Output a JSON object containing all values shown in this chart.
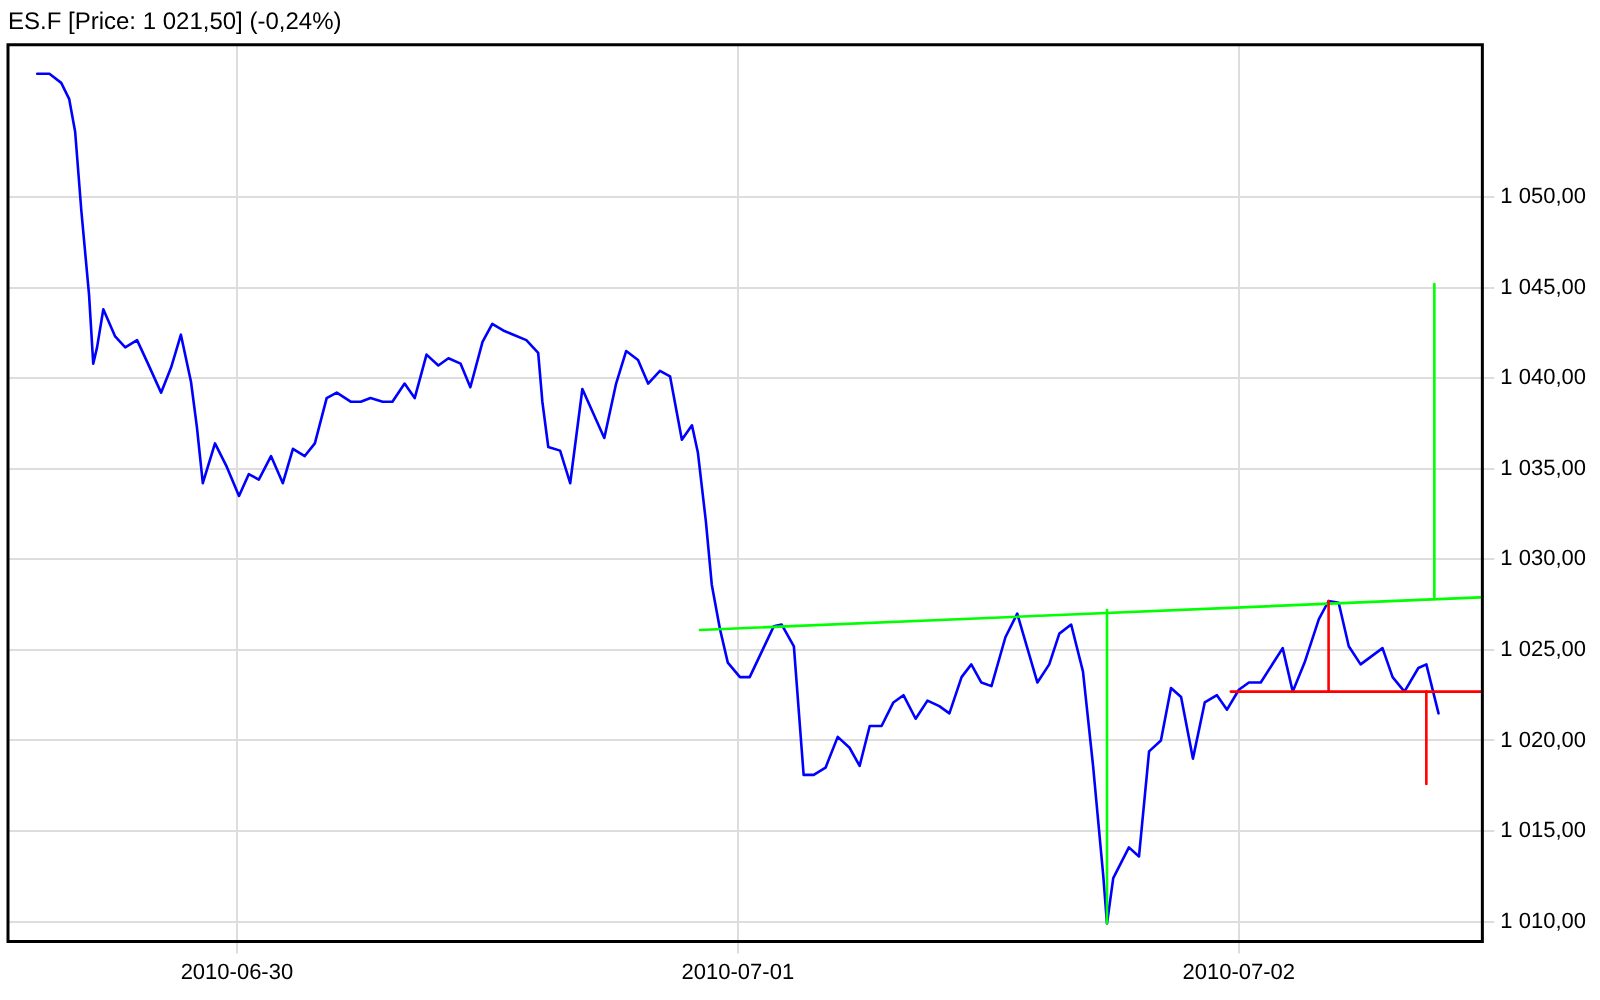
{
  "chart_data": {
    "type": "line",
    "title": "ES.F [Price: 1 021,50] (-0,24%)",
    "xlim": [
      "2010-06-29T13:02",
      "2010-07-02T11:40"
    ],
    "xticks": [
      "2010-06-30",
      "2010-07-01",
      "2010-07-02"
    ],
    "ylim": [
      1008.9,
      1058.4
    ],
    "yticks": [
      {
        "value": 1010,
        "label": "1 010,00"
      },
      {
        "value": 1015,
        "label": "1 015,00"
      },
      {
        "value": 1020,
        "label": "1 020,00"
      },
      {
        "value": 1025,
        "label": "1 025,00"
      },
      {
        "value": 1030,
        "label": "1 030,00"
      },
      {
        "value": 1035,
        "label": "1 035,00"
      },
      {
        "value": 1040,
        "label": "1 040,00"
      },
      {
        "value": 1045,
        "label": "1 045,00"
      },
      {
        "value": 1050,
        "label": "1 050,00"
      }
    ],
    "grid": true,
    "legend": false,
    "marker": "none",
    "line_style": "solid",
    "series": [
      {
        "color": "#0000ff",
        "x": [
          "2010-06-29T14:26",
          "2010-06-29T15:01",
          "2010-06-29T15:35",
          "2010-06-29T15:58",
          "2010-06-29T16:15",
          "2010-06-29T16:33",
          "2010-06-29T16:55",
          "2010-06-29T17:07",
          "2010-06-29T17:18",
          "2010-06-29T17:36",
          "2010-06-29T18:10",
          "2010-06-29T18:39",
          "2010-06-29T19:13",
          "2010-06-29T19:42",
          "2010-06-29T20:22",
          "2010-06-29T20:51",
          "2010-06-29T21:19",
          "2010-06-29T21:48",
          "2010-06-29T22:05",
          "2010-06-29T22:22",
          "2010-06-29T22:57",
          "2010-06-29T23:31",
          "2010-06-30T00:06",
          "2010-06-30T00:34",
          "2010-06-30T01:03",
          "2010-06-30T01:38",
          "2010-06-30T02:12",
          "2010-06-30T02:41",
          "2010-06-30T03:15",
          "2010-06-30T03:44",
          "2010-06-30T04:18",
          "2010-06-30T04:47",
          "2010-06-30T05:27",
          "2010-06-30T05:56",
          "2010-06-30T06:24",
          "2010-06-30T06:59",
          "2010-06-30T07:27",
          "2010-06-30T08:02",
          "2010-06-30T08:31",
          "2010-06-30T09:05",
          "2010-06-30T09:39",
          "2010-06-30T10:08",
          "2010-06-30T10:43",
          "2010-06-30T11:11",
          "2010-06-30T11:46",
          "2010-06-30T12:14",
          "2010-06-30T12:49",
          "2010-06-30T13:52",
          "2010-06-30T14:26",
          "2010-06-30T14:38",
          "2010-06-30T14:55",
          "2010-06-30T15:29",
          "2010-06-30T15:58",
          "2010-06-30T16:33",
          "2010-06-30T17:36",
          "2010-06-30T18:10",
          "2010-06-30T18:39",
          "2010-06-30T19:13",
          "2010-06-30T19:42",
          "2010-06-30T20:16",
          "2010-06-30T20:45",
          "2010-06-30T21:19",
          "2010-06-30T21:48",
          "2010-06-30T22:05",
          "2010-06-30T22:28",
          "2010-06-30T22:45",
          "2010-06-30T23:08",
          "2010-06-30T23:31",
          "2010-07-01T00:06",
          "2010-07-01T00:34",
          "2010-07-01T01:43",
          "2010-07-01T02:06",
          "2010-07-01T02:41",
          "2010-07-01T03:09",
          "2010-07-01T03:38",
          "2010-07-01T04:12",
          "2010-07-01T04:47",
          "2010-07-01T05:21",
          "2010-07-01T05:50",
          "2010-07-01T06:19",
          "2010-07-01T06:53",
          "2010-07-01T07:27",
          "2010-07-01T07:56",
          "2010-07-01T08:31",
          "2010-07-01T09:05",
          "2010-07-01T09:39",
          "2010-07-01T10:08",
          "2010-07-01T10:43",
          "2010-07-01T11:11",
          "2010-07-01T11:40",
          "2010-07-01T12:09",
          "2010-07-01T12:49",
          "2010-07-01T13:23",
          "2010-07-01T13:52",
          "2010-07-01T14:21",
          "2010-07-01T14:55",
          "2010-07-01T15:24",
          "2010-07-01T15:58",
          "2010-07-01T16:32",
          "2010-07-01T17:01",
          "2010-07-01T17:30",
          "2010-07-01T17:41",
          "2010-07-01T17:59",
          "2010-07-01T18:44",
          "2010-07-01T19:13",
          "2010-07-01T19:42",
          "2010-07-01T20:16",
          "2010-07-01T20:45",
          "2010-07-01T21:14",
          "2010-07-01T21:48",
          "2010-07-01T22:22",
          "2010-07-01T22:57",
          "2010-07-01T23:26",
          "2010-07-02T00:00",
          "2010-07-02T00:29",
          "2010-07-02T01:03",
          "2010-07-02T02:06",
          "2010-07-02T02:35",
          "2010-07-02T03:09",
          "2010-07-02T03:50",
          "2010-07-02T04:18",
          "2010-07-02T04:47",
          "2010-07-02T05:16",
          "2010-07-02T05:50",
          "2010-07-02T06:53",
          "2010-07-02T07:22",
          "2010-07-02T07:56",
          "2010-07-02T08:36",
          "2010-07-02T08:59",
          "2010-07-02T09:34"
        ],
        "values": [
          1056.8,
          1056.8,
          1056.3,
          1055.4,
          1053.6,
          1049.2,
          1044.6,
          1040.8,
          1041.7,
          1043.8,
          1042.3,
          1041.7,
          1042.1,
          1040.9,
          1039.2,
          1040.6,
          1042.4,
          1039.8,
          1037.3,
          1034.2,
          1036.4,
          1035.1,
          1033.5,
          1034.7,
          1034.4,
          1035.7,
          1034.2,
          1036.1,
          1035.7,
          1036.4,
          1038.9,
          1039.2,
          1038.7,
          1038.7,
          1038.9,
          1038.7,
          1038.7,
          1039.7,
          1038.9,
          1041.3,
          1040.7,
          1041.1,
          1040.8,
          1039.5,
          1042.0,
          1043.0,
          1042.6,
          1042.1,
          1041.4,
          1038.7,
          1036.2,
          1036.0,
          1034.2,
          1039.4,
          1036.7,
          1039.7,
          1041.5,
          1041.0,
          1039.7,
          1040.4,
          1040.1,
          1036.6,
          1037.4,
          1035.9,
          1032.1,
          1028.6,
          1026.2,
          1024.3,
          1023.5,
          1023.5,
          1026.3,
          1026.4,
          1025.2,
          1018.1,
          1018.1,
          1018.5,
          1020.2,
          1019.6,
          1018.6,
          1020.8,
          1020.8,
          1022.1,
          1022.5,
          1021.2,
          1022.2,
          1021.9,
          1021.5,
          1023.5,
          1024.2,
          1023.2,
          1023.0,
          1025.7,
          1027.0,
          1025.1,
          1023.2,
          1024.2,
          1025.9,
          1026.4,
          1023.8,
          1018.6,
          1012.6,
          1009.9,
          1012.4,
          1014.1,
          1013.6,
          1019.4,
          1020.0,
          1022.9,
          1022.4,
          1019.0,
          1022.1,
          1022.5,
          1021.7,
          1022.8,
          1023.2,
          1023.2,
          1025.1,
          1022.7,
          1024.3,
          1026.7,
          1027.7,
          1027.6,
          1025.2,
          1024.2,
          1025.1,
          1023.5,
          1022.7,
          1024.0,
          1024.2,
          1021.5
        ]
      },
      {
        "color": "#00ff00",
        "x": [
          "2010-06-30T22:11",
          "2010-07-02T11:34"
        ],
        "values": [
          1026.1,
          1027.9
        ]
      },
      {
        "color": "#00ff00",
        "x": [
          "2010-07-01T17:41",
          "2010-07-01T17:41"
        ],
        "values": [
          1027.2,
          1009.9
        ]
      },
      {
        "color": "#00ff00",
        "x": [
          "2010-07-02T09:22",
          "2010-07-02T09:22"
        ],
        "values": [
          1045.2,
          1027.9
        ]
      },
      {
        "color": "#ff0000",
        "x": [
          "2010-07-01T23:37",
          "2010-07-02T11:40"
        ],
        "values": [
          1022.7,
          1022.7
        ]
      },
      {
        "color": "#ff0000",
        "x": [
          "2010-07-02T04:18",
          "2010-07-02T04:18"
        ],
        "values": [
          1027.7,
          1022.7
        ]
      },
      {
        "color": "#ff0000",
        "x": [
          "2010-07-02T08:59",
          "2010-07-02T08:59"
        ],
        "values": [
          1022.7,
          1017.6
        ]
      }
    ]
  }
}
